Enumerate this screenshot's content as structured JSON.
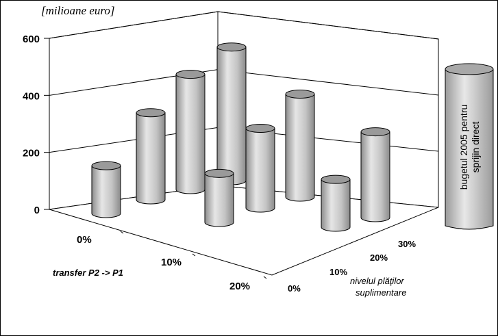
{
  "chart_data": {
    "type": "bar3d",
    "unit_label": "[milioane euro]",
    "y_ticks": [
      "0",
      "200",
      "400",
      "600"
    ],
    "ylim": [
      0,
      600
    ],
    "x_axis": {
      "label": "transfer P2 -> P1",
      "categories": [
        "0%",
        "10%",
        "20%"
      ]
    },
    "depth_axis": {
      "label_line1": "nivelul plăţilor",
      "label_line2": "suplimentare",
      "categories": [
        "0%",
        "10%",
        "20%",
        "30%"
      ]
    },
    "series": [
      {
        "transfer": "0%",
        "values": [
          195,
          355,
          470,
          545
        ]
      },
      {
        "transfer": "10%",
        "values": [
          200,
          325,
          420,
          425
        ]
      },
      {
        "transfer": "20%",
        "values": [
          195,
          350,
          370,
          350
        ]
      }
    ],
    "legend_text_line1": "bugetul 2005 pentru",
    "legend_text_line2": "sprijin direct",
    "grid": true,
    "legend_position": "right"
  },
  "colors": {
    "bar_fill": "#c8c8c8",
    "bar_top": "#9a9a9a",
    "bar_stroke": "#000000",
    "grid": "#000000",
    "wall": "#ffffff"
  }
}
